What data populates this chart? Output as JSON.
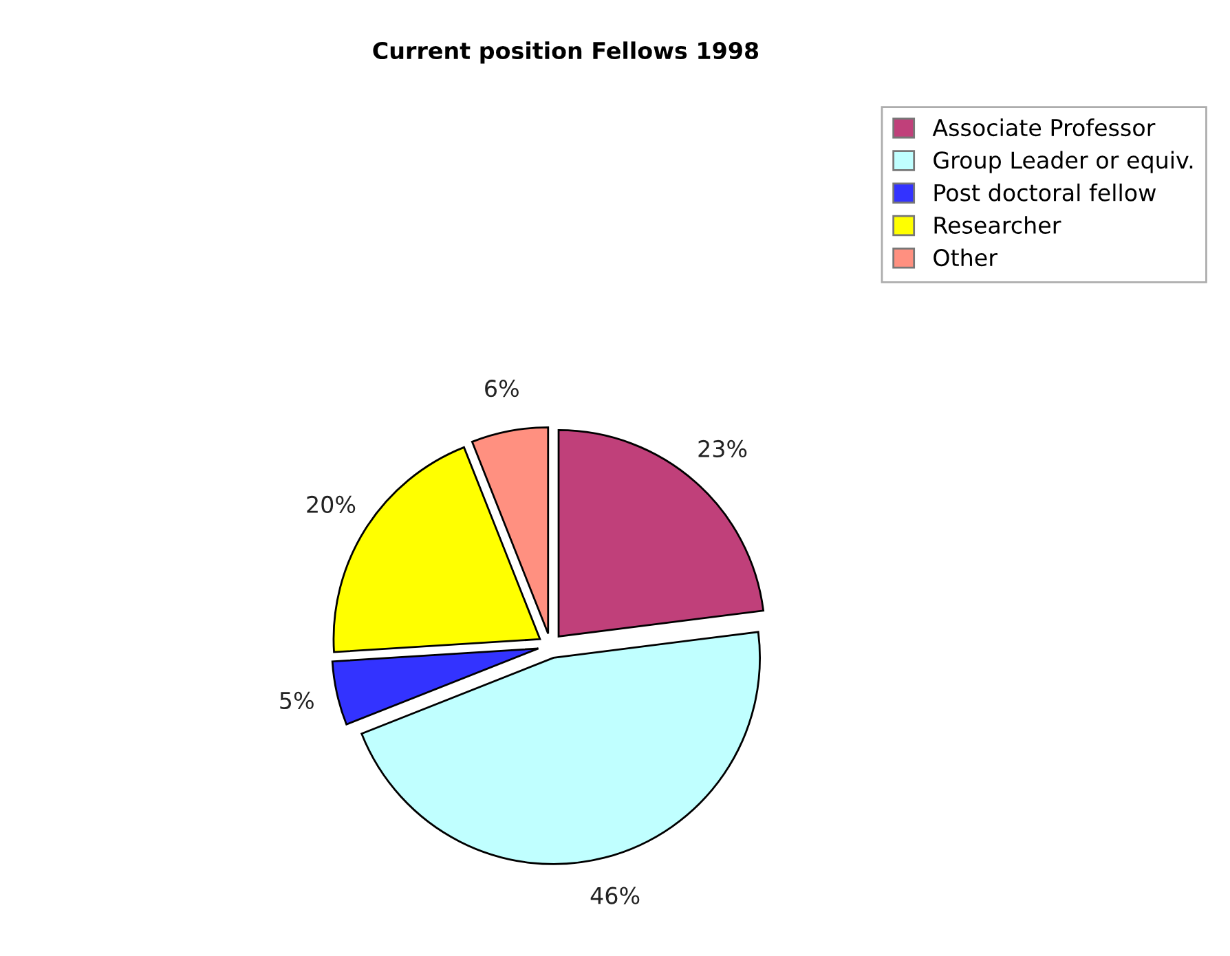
{
  "chart_data": {
    "type": "pie",
    "title": "Current position Fellows 1998",
    "categories": [
      "Associate Professor",
      "Group Leader or equiv.",
      "Post doctoral fellow",
      "Researcher",
      "Other"
    ],
    "values": [
      23,
      46,
      5,
      20,
      6
    ],
    "value_labels": [
      "23%",
      "46%",
      "5%",
      "20%",
      "6%"
    ],
    "colors": [
      "#c0407a",
      "#c0ffff",
      "#3333ff",
      "#ffff00",
      "#ff9080"
    ],
    "legend": "top right"
  }
}
